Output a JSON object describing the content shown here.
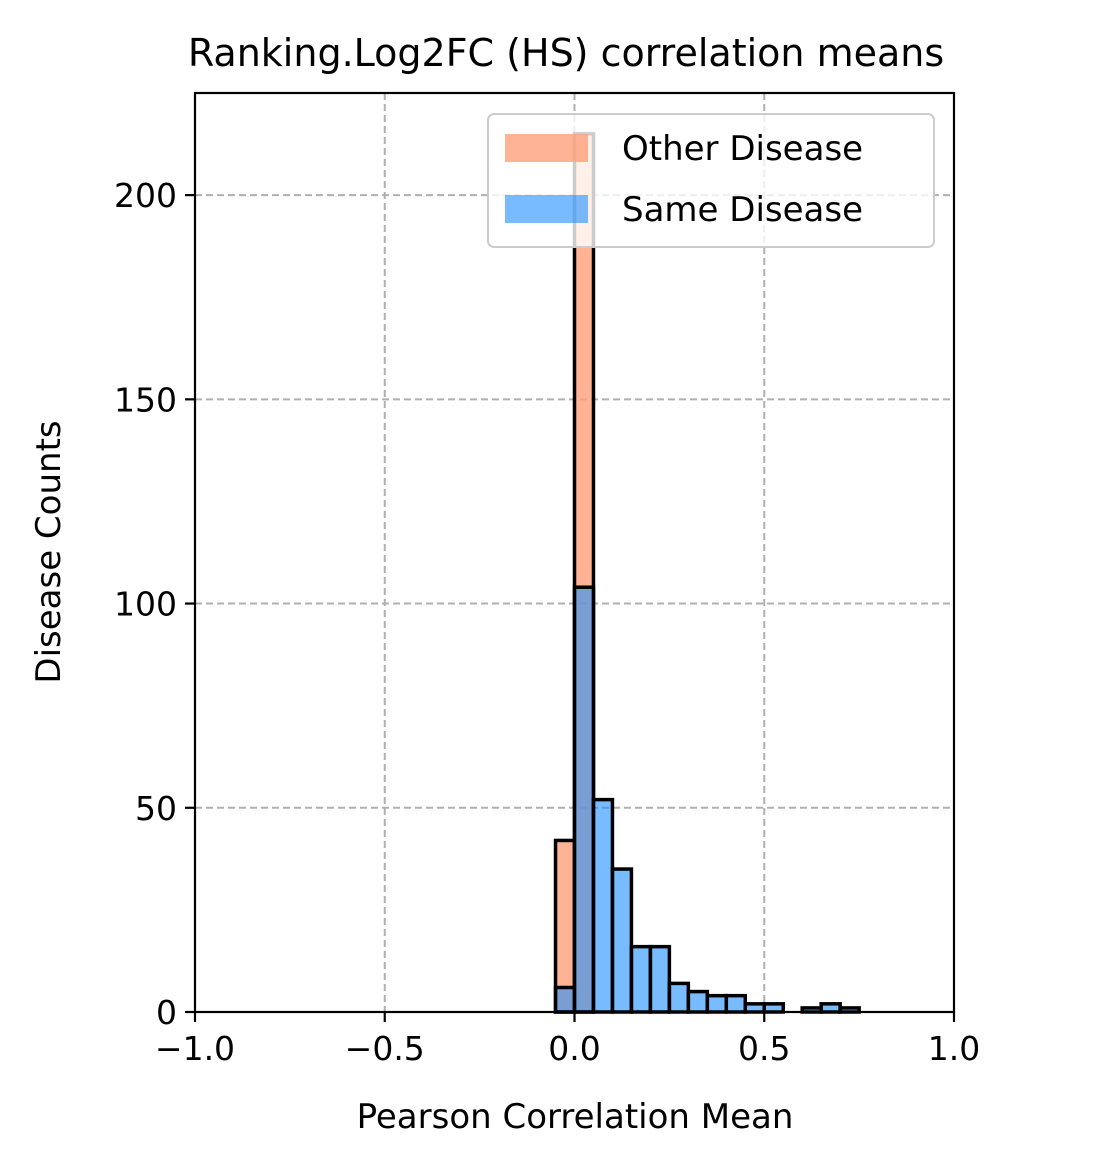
{
  "chart_data": {
    "type": "bar",
    "title": "Ranking.Log2FC (HS) correlation means",
    "xlabel": "Pearson Correlation Mean",
    "ylabel": "Disease Counts",
    "xlim": [
      -1.0,
      1.0
    ],
    "ylim": [
      0,
      225
    ],
    "xticks": [
      -1.0,
      -0.5,
      0.0,
      0.5,
      1.0
    ],
    "xtick_labels": [
      "−1.0",
      "−0.5",
      "0.0",
      "0.5",
      "1.0"
    ],
    "yticks": [
      0,
      50,
      100,
      150,
      200
    ],
    "ytick_labels": [
      "0",
      "50",
      "100",
      "150",
      "200"
    ],
    "grid": true,
    "legend_position": "top-right",
    "bin_width": 0.05,
    "series": [
      {
        "name": "Other Disease",
        "color": "#ffa07a",
        "bins": [
          {
            "x0": -0.05,
            "x1": 0.0,
            "value": 42
          },
          {
            "x0": 0.0,
            "x1": 0.05,
            "value": 215
          }
        ]
      },
      {
        "name": "Same Disease",
        "color": "#1e90ff",
        "bins": [
          {
            "x0": -0.05,
            "x1": 0.0,
            "value": 6
          },
          {
            "x0": 0.0,
            "x1": 0.05,
            "value": 104
          },
          {
            "x0": 0.05,
            "x1": 0.1,
            "value": 52
          },
          {
            "x0": 0.1,
            "x1": 0.15,
            "value": 35
          },
          {
            "x0": 0.15,
            "x1": 0.2,
            "value": 16
          },
          {
            "x0": 0.2,
            "x1": 0.25,
            "value": 16
          },
          {
            "x0": 0.25,
            "x1": 0.3,
            "value": 7
          },
          {
            "x0": 0.3,
            "x1": 0.35,
            "value": 5
          },
          {
            "x0": 0.35,
            "x1": 0.4,
            "value": 4
          },
          {
            "x0": 0.4,
            "x1": 0.45,
            "value": 4
          },
          {
            "x0": 0.45,
            "x1": 0.5,
            "value": 2
          },
          {
            "x0": 0.5,
            "x1": 0.55,
            "value": 2
          },
          {
            "x0": 0.55,
            "x1": 0.6,
            "value": 0
          },
          {
            "x0": 0.6,
            "x1": 0.65,
            "value": 1
          },
          {
            "x0": 0.65,
            "x1": 0.7,
            "value": 2
          },
          {
            "x0": 0.7,
            "x1": 0.75,
            "value": 1
          },
          {
            "x0": 0.75,
            "x1": 0.8,
            "value": 0
          },
          {
            "x0": 0.8,
            "x1": 0.85,
            "value": 0
          },
          {
            "x0": 0.85,
            "x1": 0.9,
            "value": 0
          },
          {
            "x0": 0.9,
            "x1": 0.95,
            "value": 0
          }
        ]
      }
    ]
  }
}
